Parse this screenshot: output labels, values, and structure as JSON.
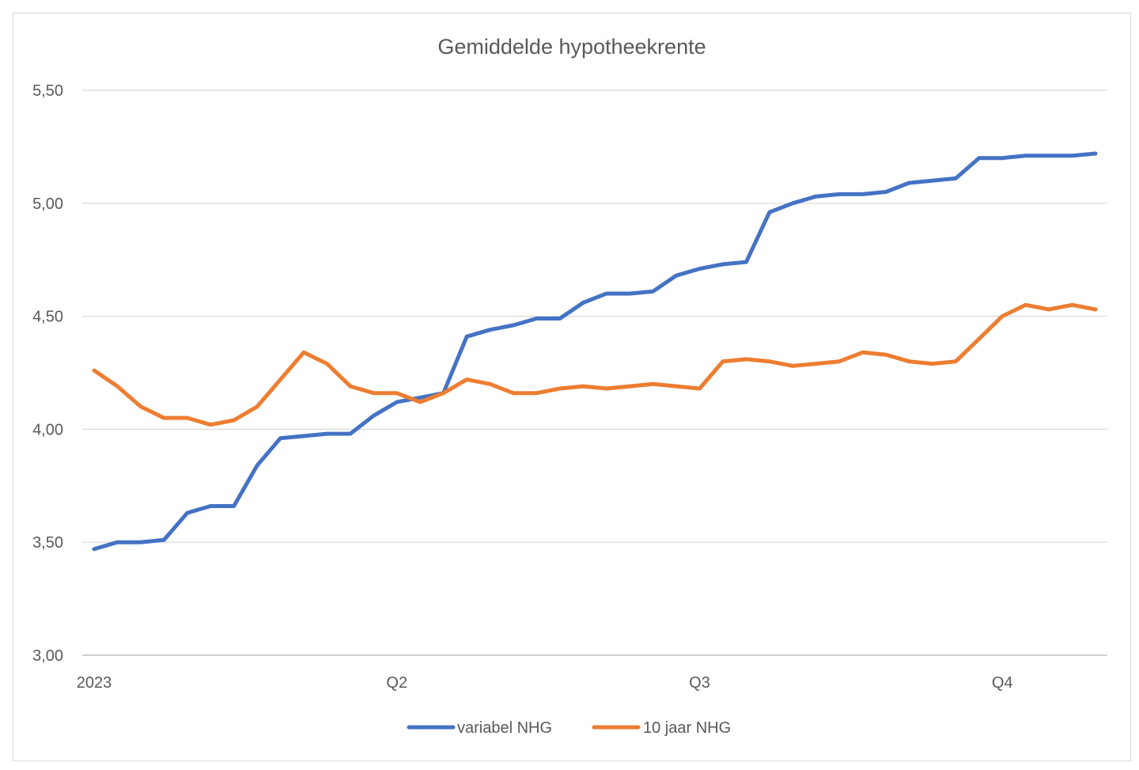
{
  "chart_data": {
    "type": "line",
    "title": "Gemiddelde hypotheekrente",
    "xlabel": "",
    "ylabel": "",
    "ylim": [
      3.0,
      5.5
    ],
    "y_ticks": [
      "3,00",
      "3,50",
      "4,00",
      "4,50",
      "5,00",
      "5,50"
    ],
    "y_tick_values": [
      3.0,
      3.5,
      4.0,
      4.5,
      5.0,
      5.5
    ],
    "x_ticks": [
      {
        "label": "2023",
        "index": 0
      },
      {
        "label": "Q2",
        "index": 13
      },
      {
        "label": "Q3",
        "index": 26
      },
      {
        "label": "Q4",
        "index": 39
      }
    ],
    "grid": true,
    "legend_position": "bottom",
    "series": [
      {
        "name": "variabel NHG",
        "color": "#4472C4",
        "values": [
          3.47,
          3.5,
          3.5,
          3.51,
          3.63,
          3.66,
          3.66,
          3.84,
          3.96,
          3.97,
          3.98,
          3.98,
          4.06,
          4.12,
          4.14,
          4.16,
          4.41,
          4.44,
          4.46,
          4.49,
          4.49,
          4.56,
          4.6,
          4.6,
          4.61,
          4.68,
          4.71,
          4.73,
          4.74,
          4.96,
          5.0,
          5.03,
          5.04,
          5.04,
          5.05,
          5.09,
          5.1,
          5.11,
          5.2,
          5.2,
          5.21,
          5.21,
          5.21,
          5.22
        ]
      },
      {
        "name": "10 jaar NHG",
        "color": "#ED7D31",
        "values": [
          4.26,
          4.19,
          4.1,
          4.05,
          4.05,
          4.02,
          4.04,
          4.1,
          4.22,
          4.34,
          4.29,
          4.19,
          4.16,
          4.16,
          4.12,
          4.16,
          4.22,
          4.2,
          4.16,
          4.16,
          4.18,
          4.19,
          4.18,
          4.19,
          4.2,
          4.19,
          4.18,
          4.3,
          4.31,
          4.3,
          4.28,
          4.29,
          4.3,
          4.34,
          4.33,
          4.3,
          4.29,
          4.3,
          4.4,
          4.5,
          4.55,
          4.53,
          4.55,
          4.53
        ]
      }
    ]
  }
}
